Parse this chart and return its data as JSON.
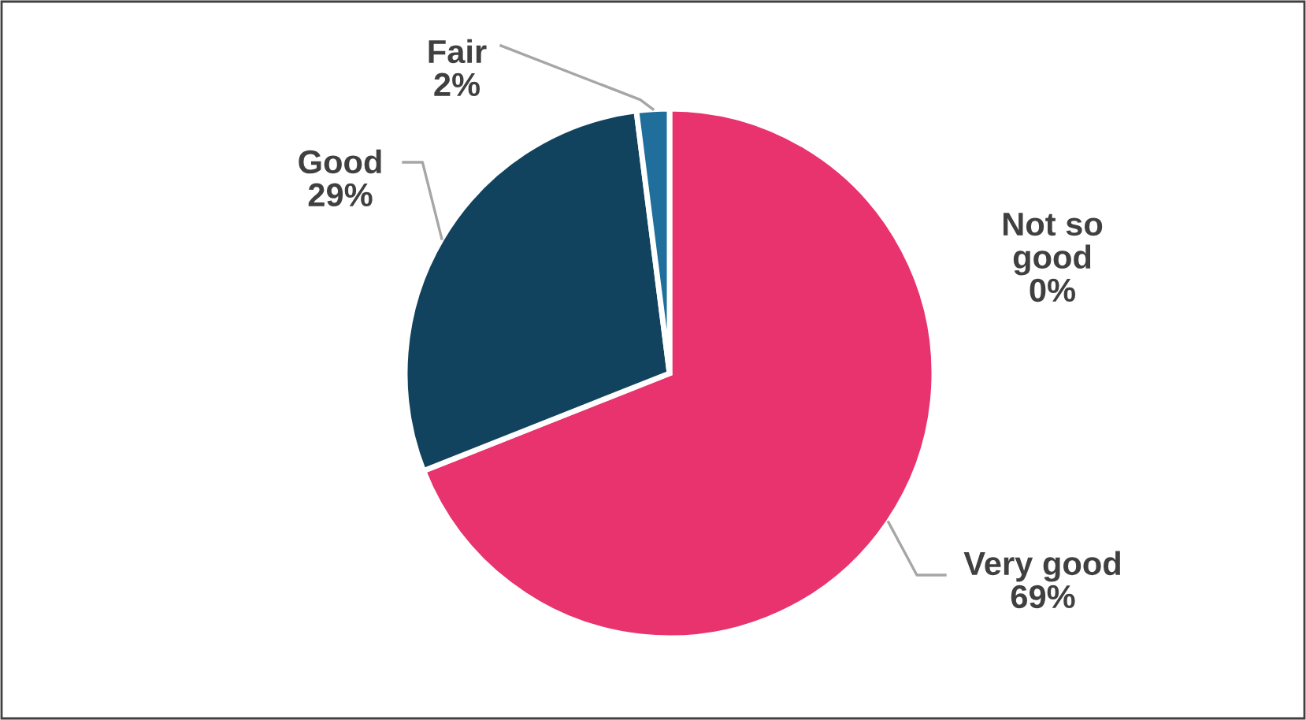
{
  "chart_data": {
    "type": "pie",
    "categories": [
      "Not so\ngood",
      "Very good",
      "Good",
      "Fair"
    ],
    "values": [
      0,
      69,
      29,
      2
    ],
    "value_labels": [
      "0%",
      "69%",
      "29%",
      "2%"
    ],
    "colors": [
      "#a5a5a5",
      "#e8336f",
      "#12435e",
      "#1f6e9c"
    ],
    "legend": false
  }
}
